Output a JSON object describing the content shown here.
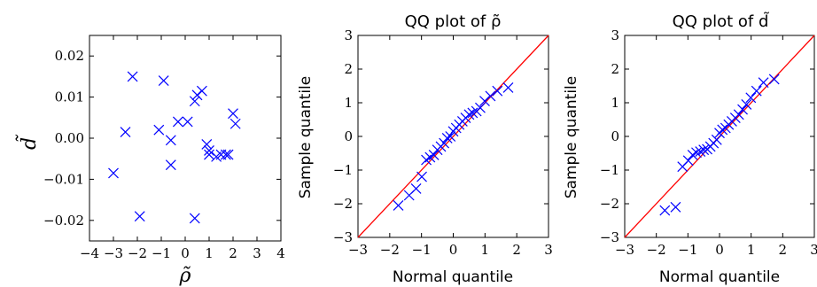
{
  "chart_data": [
    {
      "type": "scatter",
      "title": "",
      "xlabel": "ρ̃",
      "ylabel": "d̃",
      "xlim": [
        -4,
        4
      ],
      "ylim": [
        -0.025,
        0.025
      ],
      "xticks": [
        -4,
        -3,
        -2,
        -1,
        0,
        1,
        2,
        3,
        4
      ],
      "xtick_labels": [
        "−4",
        "−3",
        "−2",
        "−1",
        "0",
        "1",
        "2",
        "3",
        "4"
      ],
      "yticks": [
        -0.02,
        -0.01,
        0.0,
        0.01,
        0.02
      ],
      "ytick_labels": [
        "−0.02",
        "−0.01",
        "0.00",
        "0.01",
        "0.02"
      ],
      "grid": false,
      "marker": "x",
      "marker_color": "#0000ff",
      "series": [
        {
          "x": [
            -3.0,
            -2.5,
            -2.2,
            -1.9,
            -1.1,
            -0.9,
            -0.6,
            -0.6,
            -0.3,
            0.1,
            0.4,
            0.4,
            0.5,
            0.7,
            0.9,
            1.0,
            1.0,
            1.3,
            1.5,
            1.7,
            1.8,
            2.0,
            2.1
          ],
          "y": [
            -0.0085,
            0.0015,
            0.015,
            -0.019,
            0.002,
            0.014,
            -0.0005,
            -0.0065,
            0.004,
            0.004,
            0.009,
            -0.0195,
            0.0105,
            0.0115,
            -0.0015,
            -0.003,
            -0.004,
            -0.0045,
            -0.004,
            -0.004,
            -0.004,
            0.006,
            0.0035
          ]
        }
      ]
    },
    {
      "type": "scatter",
      "title": "QQ plot of ρ̃",
      "xlabel": "Normal quantile",
      "ylabel": "Sample quantile",
      "xlim": [
        -3,
        3
      ],
      "ylim": [
        -3,
        3
      ],
      "xticks": [
        -3,
        -2,
        -1,
        0,
        1,
        2,
        3
      ],
      "xtick_labels": [
        "−3",
        "−2",
        "−1",
        "0",
        "1",
        "2",
        "3"
      ],
      "yticks": [
        -3,
        -2,
        -1,
        0,
        1,
        2,
        3
      ],
      "ytick_labels": [
        "−3",
        "−2",
        "−1",
        "0",
        "1",
        "2",
        "3"
      ],
      "grid": false,
      "marker": "x",
      "marker_color": "#0000ff",
      "reference_line": {
        "slope": 1,
        "intercept": 0,
        "color": "#ff0000"
      },
      "series": [
        {
          "x": [
            -1.73,
            -1.39,
            -1.17,
            -0.99,
            -0.85,
            -0.73,
            -0.61,
            -0.5,
            -0.39,
            -0.29,
            -0.19,
            -0.09,
            0.0,
            0.09,
            0.19,
            0.29,
            0.39,
            0.5,
            0.61,
            0.73,
            0.85,
            0.99,
            1.17,
            1.39,
            1.73
          ],
          "y": [
            -2.05,
            -1.75,
            -1.55,
            -1.2,
            -0.7,
            -0.62,
            -0.55,
            -0.4,
            -0.3,
            -0.2,
            -0.05,
            0.0,
            0.15,
            0.25,
            0.35,
            0.45,
            0.55,
            0.65,
            0.7,
            0.75,
            0.85,
            1.05,
            1.2,
            1.35,
            1.45
          ]
        }
      ]
    },
    {
      "type": "scatter",
      "title": "QQ plot of d̃",
      "xlabel": "Normal quantile",
      "ylabel": "Sample quantile",
      "xlim": [
        -3,
        3
      ],
      "ylim": [
        -3,
        3
      ],
      "xticks": [
        -3,
        -2,
        -1,
        0,
        1,
        2,
        3
      ],
      "xtick_labels": [
        "−3",
        "−2",
        "−1",
        "0",
        "1",
        "2",
        "3"
      ],
      "yticks": [
        -3,
        -2,
        -1,
        0,
        1,
        2,
        3
      ],
      "ytick_labels": [
        "−3",
        "−2",
        "−1",
        "0",
        "1",
        "2",
        "3"
      ],
      "grid": false,
      "marker": "x",
      "marker_color": "#0000ff",
      "reference_line": {
        "slope": 1,
        "intercept": 0,
        "color": "#ff0000"
      },
      "series": [
        {
          "x": [
            -1.73,
            -1.39,
            -1.17,
            -0.99,
            -0.85,
            -0.73,
            -0.61,
            -0.5,
            -0.39,
            -0.29,
            -0.19,
            -0.09,
            0.0,
            0.09,
            0.19,
            0.29,
            0.39,
            0.5,
            0.61,
            0.73,
            0.85,
            0.99,
            1.17,
            1.39,
            1.73
          ],
          "y": [
            -2.2,
            -2.1,
            -0.9,
            -0.72,
            -0.55,
            -0.48,
            -0.45,
            -0.4,
            -0.38,
            -0.3,
            -0.2,
            -0.1,
            0.1,
            0.2,
            0.25,
            0.35,
            0.45,
            0.55,
            0.65,
            0.8,
            0.95,
            1.15,
            1.35,
            1.6,
            1.7
          ]
        }
      ]
    }
  ]
}
